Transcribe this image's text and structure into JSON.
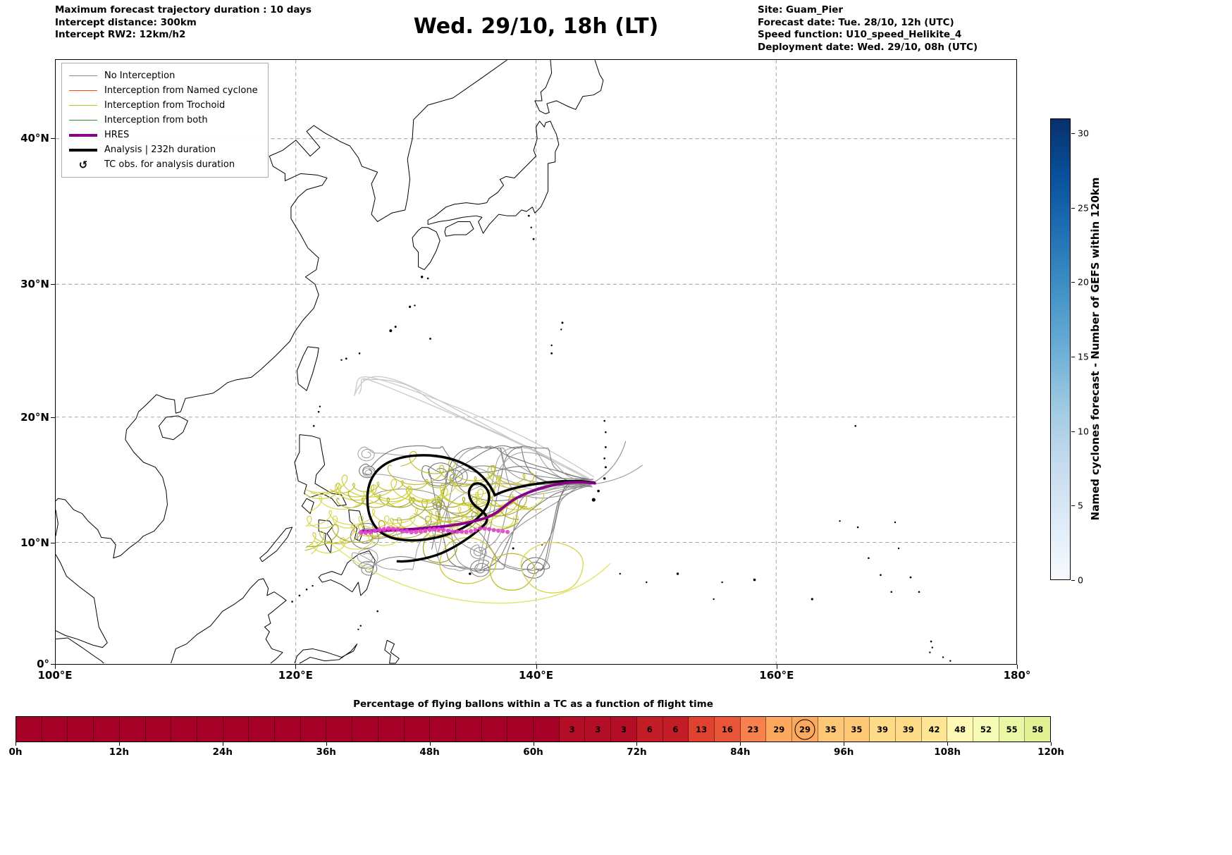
{
  "header": {
    "left_lines": [
      "Maximum forecast trajectory duration : 10 days",
      "Intercept distance: 300km",
      "Intercept RW2: 12km/h2"
    ],
    "title": "Wed. 29/10, 18h (LT)",
    "right_lines": [
      "Site: Guam_Pier",
      "Forecast date: Tue. 28/10, 12h (UTC)",
      "Speed function: U10_speed_Helikite_4",
      "Deployment date: Wed. 29/10, 08h (UTC)"
    ]
  },
  "legend": {
    "items": [
      {
        "label": "No Interception",
        "color": "#8c8c8c",
        "lw": 1.5,
        "type": "line"
      },
      {
        "label": "Interception from Named cyclone",
        "color": "#ff4500",
        "lw": 1.5,
        "type": "line"
      },
      {
        "label": "Interception from Trochoid",
        "color": "#bcbd22",
        "lw": 1.5,
        "type": "line"
      },
      {
        "label": "Interception from both",
        "color": "#2e8b2e",
        "lw": 1.5,
        "type": "line"
      },
      {
        "label": "HRES",
        "color": "#8b008b",
        "lw": 4,
        "type": "line"
      },
      {
        "label": "Analysis | 232h duration",
        "color": "#000000",
        "lw": 4,
        "type": "line"
      },
      {
        "label": "TC obs. for analysis duration",
        "symbol": "↺",
        "color": "#000000",
        "type": "glyph"
      }
    ]
  },
  "map": {
    "x_tick_labels": [
      "100°E",
      "120°E",
      "140°E",
      "160°E",
      "180°"
    ],
    "y_tick_labels": [
      "0°",
      "10°N",
      "20°N",
      "30°N",
      "40°N"
    ]
  },
  "colorbar": {
    "label": "Named cyclones forecast - Number of GEFS within 120km",
    "tick_values": [
      0,
      5,
      10,
      15,
      20,
      25,
      30
    ],
    "min": 0,
    "max": 31,
    "colors": [
      "#f7fbff",
      "#deebf7",
      "#c6dbef",
      "#9ecae1",
      "#6baed6",
      "#4292c6",
      "#2171b5",
      "#08519c",
      "#08306b"
    ]
  },
  "chart_data": [
    {
      "type": "heatmap",
      "title": "Percentage of flying ballons within a TC as a function of flight time",
      "x_tick_labels": [
        "0h",
        "12h",
        "24h",
        "36h",
        "48h",
        "60h",
        "72h",
        "84h",
        "96h",
        "108h",
        "120h"
      ],
      "segment_duration_h": 3,
      "value_unit": "%",
      "values": [
        null,
        null,
        null,
        null,
        null,
        null,
        null,
        null,
        null,
        null,
        null,
        null,
        null,
        null,
        null,
        null,
        null,
        null,
        null,
        null,
        null,
        3,
        3,
        3,
        6,
        6,
        13,
        16,
        23,
        29,
        29,
        35,
        35,
        39,
        39,
        42,
        48,
        52,
        55,
        58
      ],
      "circled_index": 30,
      "colormap_stops": [
        [
          0,
          "#a50026"
        ],
        [
          10,
          "#d73027"
        ],
        [
          20,
          "#f46d43"
        ],
        [
          30,
          "#fdae61"
        ],
        [
          40,
          "#fee08b"
        ],
        [
          50,
          "#ffffbf"
        ],
        [
          60,
          "#d9ef8b"
        ],
        [
          70,
          "#a6d96a"
        ]
      ]
    },
    {
      "type": "map-trajectories",
      "lon_range": [
        100,
        180
      ],
      "lat_range": [
        0,
        45.4
      ],
      "x_tick_labels": [
        "100°E",
        "120°E",
        "140°E",
        "160°E",
        "180°"
      ],
      "y_tick_labels": [
        "0°",
        "10°N",
        "20°N",
        "30°N",
        "40°N"
      ],
      "origin_site": "Guam_Pier",
      "series": [
        {
          "name": "No Interception",
          "color": "#8c8c8c"
        },
        {
          "name": "Interception from Trochoid",
          "color": "#bcbd22"
        },
        {
          "name": "HRES",
          "color": "#8b008b"
        },
        {
          "name": "Analysis | 232h duration",
          "color": "#000000"
        },
        {
          "name": "TC obs. for analysis duration",
          "color": "#e33fd0"
        }
      ]
    }
  ]
}
